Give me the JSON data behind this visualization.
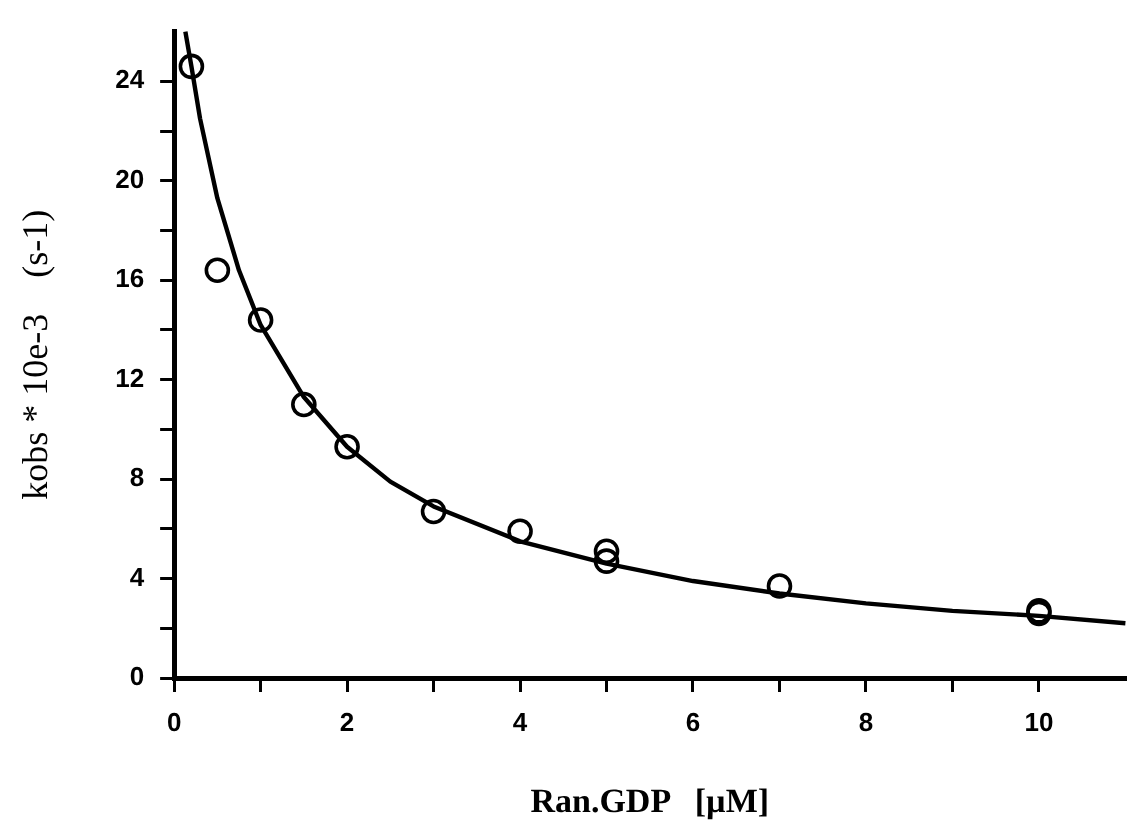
{
  "chart_data": {
    "type": "scatter",
    "xlabel": "Ran.GDP   [µM]",
    "ylabel": "kobs * 10e-3    (s-1)",
    "xlim": [
      0,
      11
    ],
    "ylim": [
      0,
      26
    ],
    "xticks": [
      0,
      {
        "value": 1,
        "label": null
      },
      2,
      {
        "value": 3,
        "label": null
      },
      4,
      {
        "value": 5,
        "label": null
      },
      6,
      {
        "value": 7,
        "label": null
      },
      8,
      {
        "value": 9,
        "label": null
      },
      10
    ],
    "yticks": [
      0,
      {
        "value": 2,
        "label": null
      },
      4,
      {
        "value": 6,
        "label": null
      },
      8,
      {
        "value": 10,
        "label": null
      },
      12,
      {
        "value": 14,
        "label": null
      },
      16,
      {
        "value": 18,
        "label": null
      },
      20,
      {
        "value": 22,
        "label": null
      },
      24
    ],
    "grid": false,
    "legend": false,
    "series": [
      {
        "marker": "circle",
        "color": "#000000",
        "x": [
          0.2,
          0.5,
          1,
          1.5,
          2,
          3,
          4,
          5,
          5,
          7,
          10,
          10
        ],
        "values": [
          24.6,
          16.4,
          14.4,
          11,
          9.3,
          6.7,
          5.9,
          5.1,
          4.7,
          3.7,
          2.6,
          2.7
        ]
      },
      {
        "type": "line",
        "marker": "none",
        "line_style": "solid",
        "color": "#000000",
        "x": [
          0.13,
          0.2,
          0.3,
          0.5,
          0.75,
          1,
          1.5,
          2,
          2.5,
          3,
          4,
          5,
          6,
          7,
          8,
          9,
          10,
          11
        ],
        "values": [
          26,
          24.6,
          22.5,
          19.3,
          16.4,
          14.2,
          11.3,
          9.3,
          7.9,
          6.9,
          5.5,
          4.6,
          3.9,
          3.4,
          3.0,
          2.7,
          2.5,
          2.2
        ]
      }
    ]
  }
}
